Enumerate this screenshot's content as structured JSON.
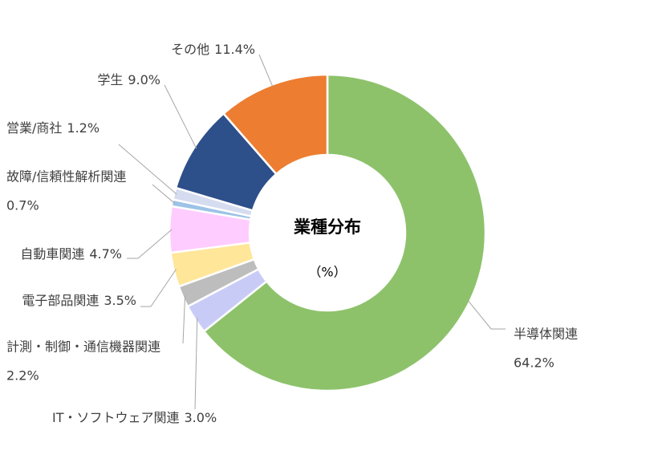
{
  "chart_data": {
    "type": "donut",
    "title": "業種分布",
    "subtitle": "（%）",
    "categories": [
      "半導体関連",
      "IT・ソフトウェア関連",
      "計測・制御・通信機器関連",
      "電子部品関連",
      "自動車関連",
      "故障/信頼性解析関連",
      "営業/商社",
      "学生",
      "その他"
    ],
    "values": [
      64.2,
      3.0,
      2.2,
      3.5,
      4.7,
      0.7,
      1.2,
      9.0,
      11.4
    ],
    "value_labels": [
      "64.2%",
      "3.0%",
      "2.2%",
      "3.5%",
      "4.7%",
      "0.7%",
      "1.2%",
      "9.0%",
      "11.4%"
    ],
    "colors": [
      "#8dc26b",
      "#c9cbf7",
      "#bdbdbd",
      "#ffe699",
      "#ffccff",
      "#9dc3e6",
      "#d6dcf0",
      "#2d4f8a",
      "#ed7d31"
    ]
  }
}
